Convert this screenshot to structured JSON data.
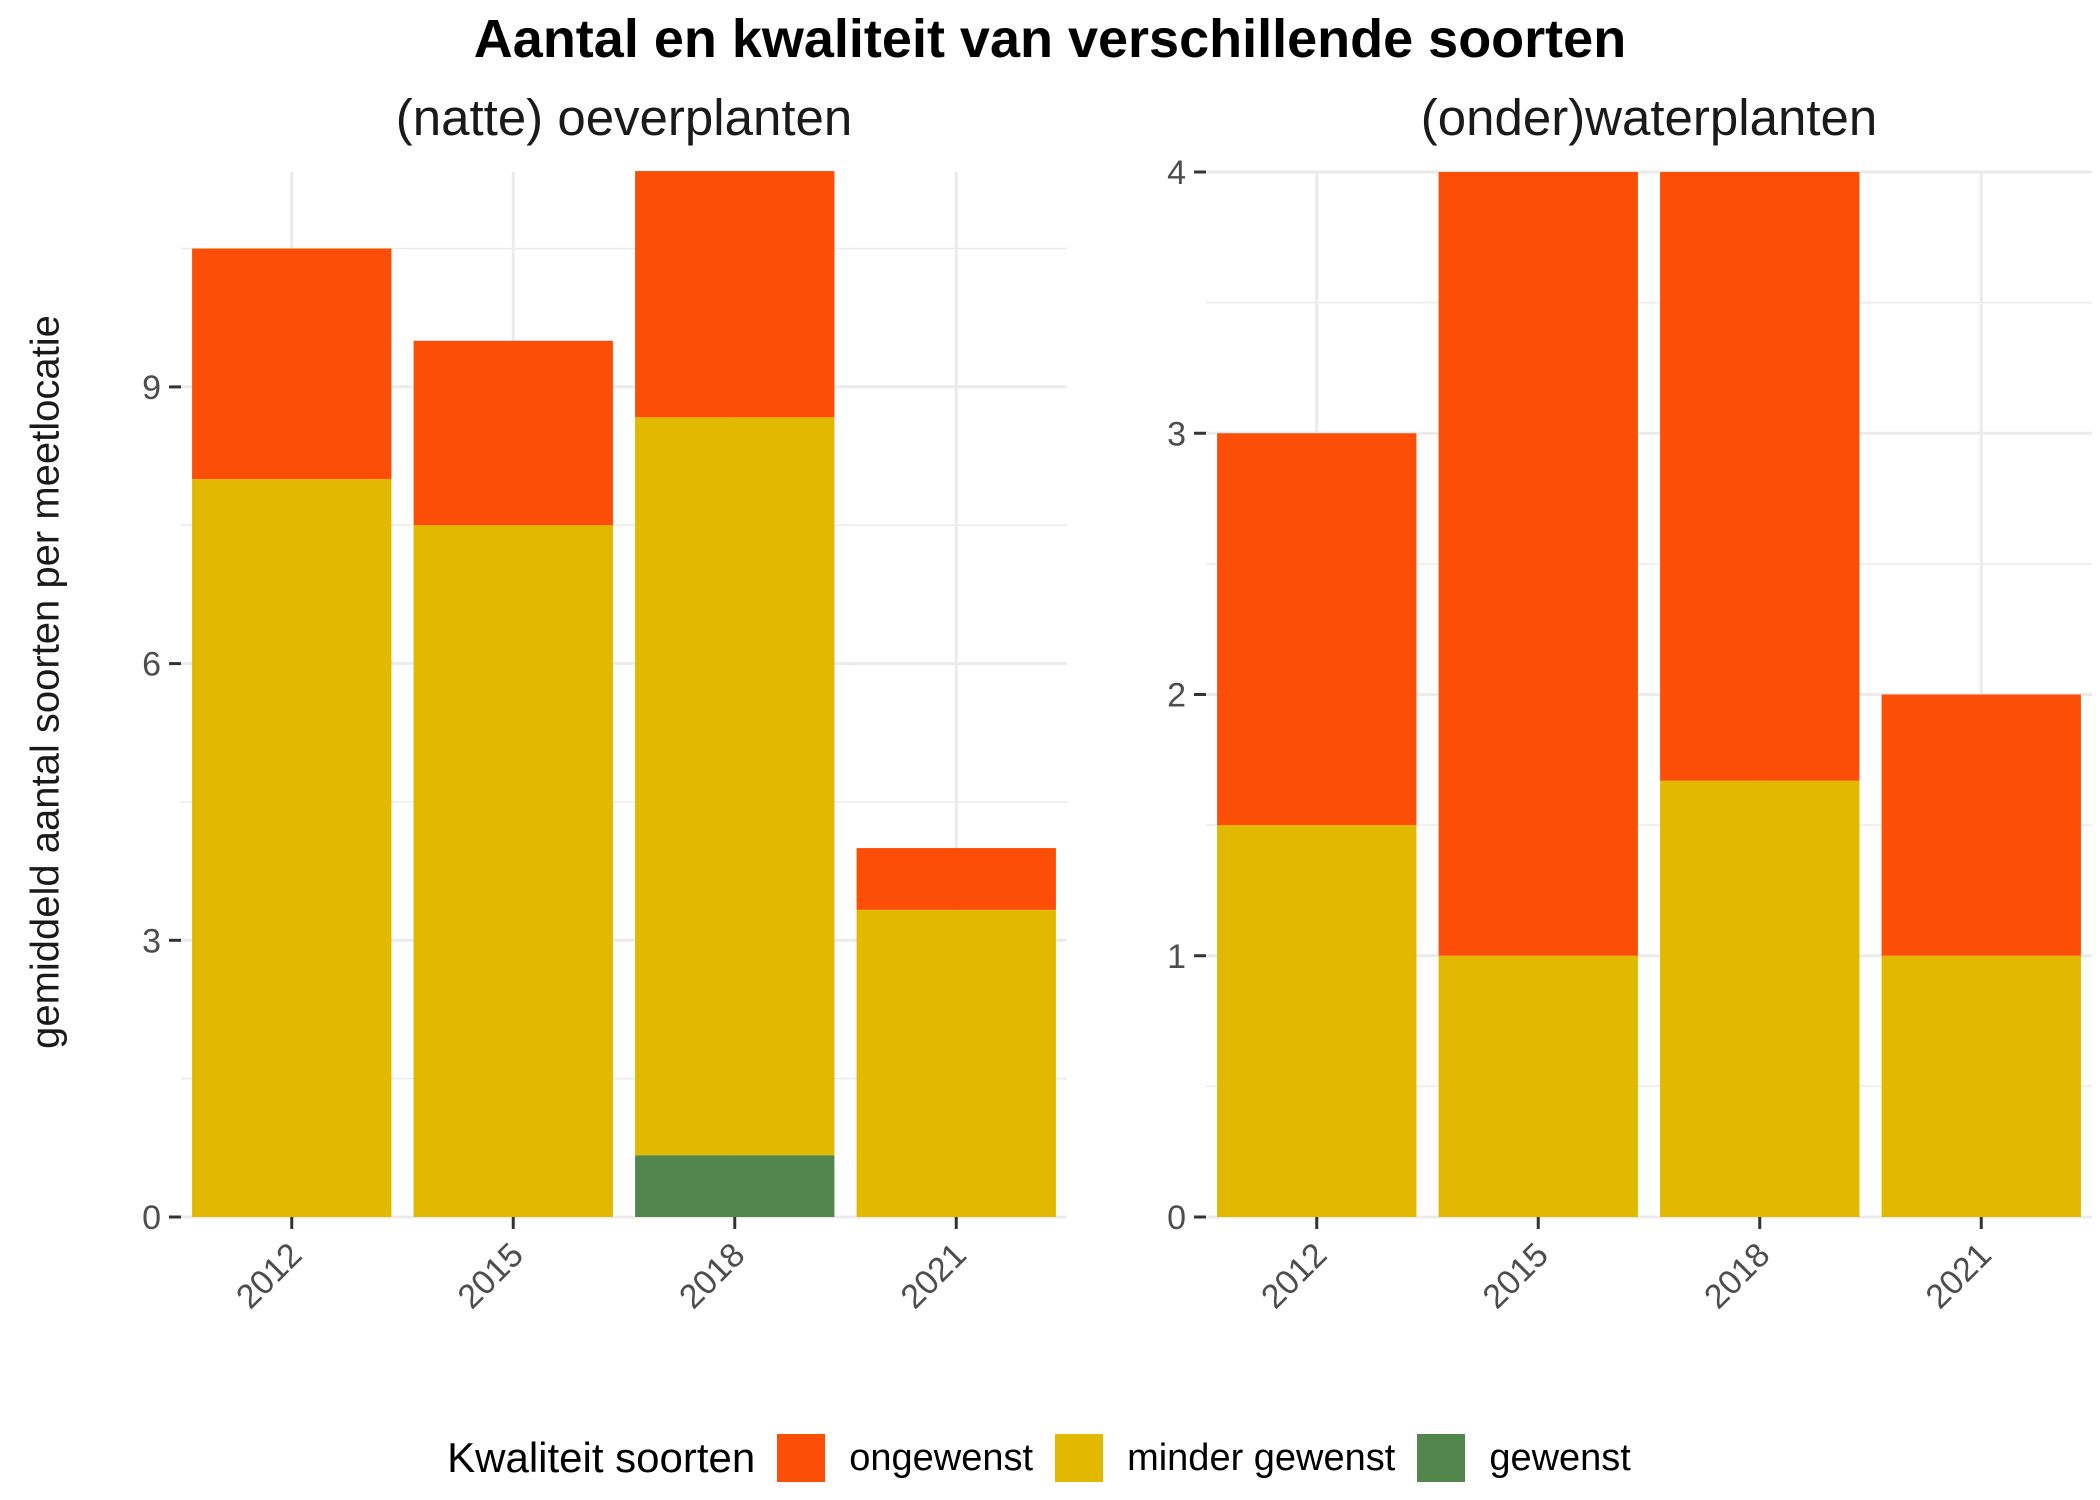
{
  "title": "Aantal en kwaliteit van verschillende soorten",
  "ylabel": "gemiddeld aantal soorten per meetlocatie",
  "legend": {
    "title": "Kwaliteit soorten",
    "items": [
      {
        "label": "ongewenst",
        "color": "#FC4E07"
      },
      {
        "label": "minder gewenst",
        "color": "#E3B900"
      },
      {
        "label": "gewenst",
        "color": "#52864D"
      }
    ]
  },
  "chart_data": [
    {
      "type": "bar",
      "stacked": true,
      "title": "(natte) oeverplanten",
      "categories": [
        "2012",
        "2015",
        "2018",
        "2021"
      ],
      "ylim": [
        0,
        11.33
      ],
      "yticks": [
        "0",
        "3",
        "6",
        "9"
      ],
      "series": [
        {
          "name": "gewenst",
          "color": "#52864D",
          "values": [
            0,
            0,
            0.67,
            0
          ]
        },
        {
          "name": "minder gewenst",
          "color": "#E3B900",
          "values": [
            8,
            7.5,
            8,
            3.33
          ]
        },
        {
          "name": "ongewenst",
          "color": "#FC4E07",
          "values": [
            2.5,
            2,
            2.67,
            0.67
          ]
        }
      ],
      "grid": true
    },
    {
      "type": "bar",
      "stacked": true,
      "title": "(onder)waterplanten",
      "categories": [
        "2012",
        "2015",
        "2018",
        "2021"
      ],
      "ylim": [
        0,
        4
      ],
      "yticks": [
        "0",
        "1",
        "2",
        "3",
        "4"
      ],
      "series": [
        {
          "name": "gewenst",
          "color": "#52864D",
          "values": [
            0,
            0,
            0,
            0
          ]
        },
        {
          "name": "minder gewenst",
          "color": "#E3B900",
          "values": [
            1.5,
            1,
            1.67,
            1
          ]
        },
        {
          "name": "ongewenst",
          "color": "#FC4E07",
          "values": [
            1.5,
            3,
            2.33,
            1
          ]
        }
      ],
      "grid": true
    }
  ]
}
